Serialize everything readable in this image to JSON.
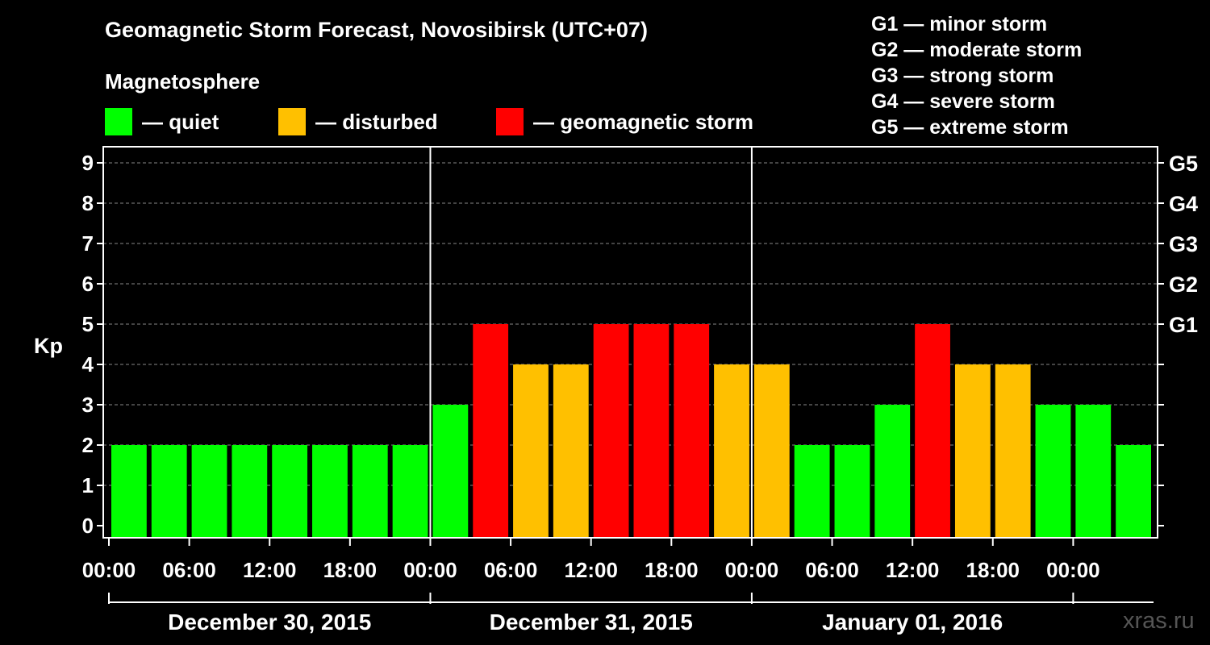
{
  "title": "Geomagnetic Storm Forecast, Novosibirsk (UTC+07)",
  "subtitle": "Magnetosphere",
  "legend": [
    {
      "label": "— quiet",
      "color": "#00ff00"
    },
    {
      "label": "— disturbed",
      "color": "#ffc000"
    },
    {
      "label": "— geomagnetic storm",
      "color": "#ff0000"
    }
  ],
  "g_legend": [
    "G1 — minor storm",
    "G2 — moderate storm",
    "G3 — strong storm",
    "G4 — severe storm",
    "G5 — extreme storm"
  ],
  "watermark": "xras.ru",
  "chart_data": {
    "type": "bar",
    "ylabel": "Kp",
    "ylim": [
      0,
      9
    ],
    "yticks": [
      "0",
      "1",
      "2",
      "3",
      "4",
      "5",
      "6",
      "7",
      "8",
      "9"
    ],
    "right_ticks": [
      {
        "value": 5,
        "label": "G1"
      },
      {
        "value": 6,
        "label": "G2"
      },
      {
        "value": 7,
        "label": "G3"
      },
      {
        "value": 8,
        "label": "G4"
      },
      {
        "value": 9,
        "label": "G5"
      }
    ],
    "x_tick_labels": [
      "00:00",
      "06:00",
      "12:00",
      "18:00",
      "00:00",
      "06:00",
      "12:00",
      "18:00",
      "00:00",
      "06:00",
      "12:00",
      "18:00",
      "00:00"
    ],
    "days": [
      "December 30, 2015",
      "December 31, 2015",
      "January 01, 2016"
    ],
    "interval_hours": 3,
    "values": [
      2,
      2,
      2,
      2,
      2,
      2,
      2,
      2,
      3,
      5,
      4,
      4,
      5,
      5,
      5,
      4,
      4,
      2,
      2,
      3,
      5,
      4,
      4,
      3,
      3,
      2
    ],
    "levels": [
      "quiet",
      "quiet",
      "quiet",
      "quiet",
      "quiet",
      "quiet",
      "quiet",
      "quiet",
      "quiet",
      "storm",
      "disturbed",
      "disturbed",
      "storm",
      "storm",
      "storm",
      "disturbed",
      "disturbed",
      "quiet",
      "quiet",
      "quiet",
      "storm",
      "disturbed",
      "disturbed",
      "quiet",
      "quiet",
      "quiet"
    ],
    "colors": {
      "quiet": "#00ff00",
      "disturbed": "#ffc000",
      "storm": "#ff0000"
    },
    "grid": true
  }
}
